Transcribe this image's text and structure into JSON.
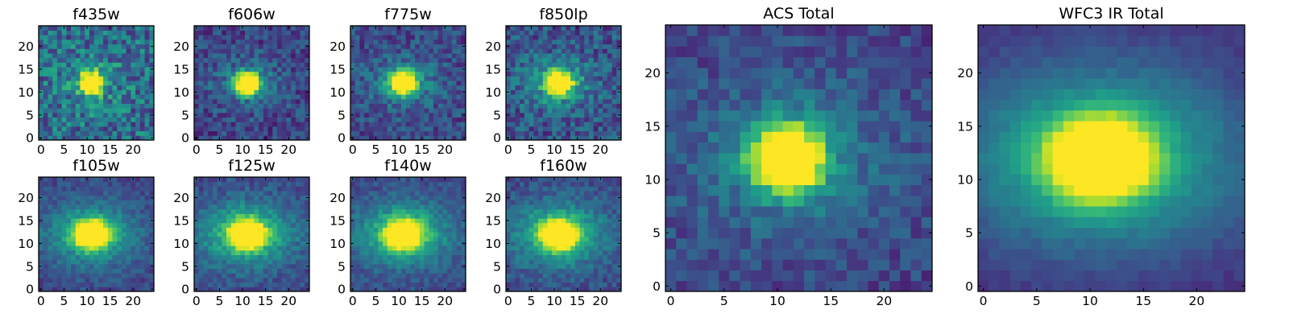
{
  "colormap": "viridis",
  "chart_data": [
    {
      "type": "heatmap",
      "title": "f435w",
      "image_size": 25,
      "xticks": [
        0,
        5,
        10,
        15,
        20
      ],
      "yticks": [
        0,
        5,
        10,
        15,
        20
      ],
      "source_center": [
        11,
        12
      ],
      "source_radius": [
        1.6,
        1.6
      ],
      "halo_level": 0.15,
      "noise_level": 0.45,
      "background_level": 0.35
    },
    {
      "type": "heatmap",
      "title": "f606w",
      "image_size": 25,
      "xticks": [
        0,
        5,
        10,
        15,
        20
      ],
      "yticks": [
        0,
        5,
        10,
        15,
        20
      ],
      "source_center": [
        11,
        12
      ],
      "source_radius": [
        1.8,
        1.6
      ],
      "halo_level": 0.2,
      "noise_level": 0.3,
      "background_level": 0.2
    },
    {
      "type": "heatmap",
      "title": "f775w",
      "image_size": 25,
      "xticks": [
        0,
        5,
        10,
        15,
        20
      ],
      "yticks": [
        0,
        5,
        10,
        15,
        20
      ],
      "source_center": [
        11,
        12
      ],
      "source_radius": [
        1.8,
        1.6
      ],
      "halo_level": 0.25,
      "noise_level": 0.3,
      "background_level": 0.22
    },
    {
      "type": "heatmap",
      "title": "f850lp",
      "image_size": 25,
      "xticks": [
        0,
        5,
        10,
        15,
        20
      ],
      "yticks": [
        0,
        5,
        10,
        15,
        20
      ],
      "source_center": [
        11,
        12
      ],
      "source_radius": [
        1.8,
        1.6
      ],
      "halo_level": 0.3,
      "noise_level": 0.35,
      "background_level": 0.25
    },
    {
      "type": "heatmap",
      "title": "f105w",
      "image_size": 25,
      "xticks": [
        0,
        5,
        10,
        15,
        20
      ],
      "yticks": [
        0,
        5,
        10,
        15,
        20
      ],
      "source_center": [
        11,
        12
      ],
      "source_radius": [
        2.3,
        1.9
      ],
      "halo_level": 0.45,
      "noise_level": 0.18,
      "background_level": 0.2
    },
    {
      "type": "heatmap",
      "title": "f125w",
      "image_size": 25,
      "xticks": [
        0,
        5,
        10,
        15,
        20
      ],
      "yticks": [
        0,
        5,
        10,
        15,
        20
      ],
      "source_center": [
        11,
        12
      ],
      "source_radius": [
        2.3,
        1.9
      ],
      "halo_level": 0.5,
      "noise_level": 0.2,
      "background_level": 0.22
    },
    {
      "type": "heatmap",
      "title": "f140w",
      "image_size": 25,
      "xticks": [
        0,
        5,
        10,
        15,
        20
      ],
      "yticks": [
        0,
        5,
        10,
        15,
        20
      ],
      "source_center": [
        11,
        12
      ],
      "source_radius": [
        2.3,
        1.9
      ],
      "halo_level": 0.5,
      "noise_level": 0.18,
      "background_level": 0.22
    },
    {
      "type": "heatmap",
      "title": "f160w",
      "image_size": 25,
      "xticks": [
        0,
        5,
        10,
        15,
        20
      ],
      "yticks": [
        0,
        5,
        10,
        15,
        20
      ],
      "source_center": [
        11,
        12
      ],
      "source_radius": [
        2.3,
        1.9
      ],
      "halo_level": 0.5,
      "noise_level": 0.2,
      "background_level": 0.22
    },
    {
      "type": "heatmap",
      "title": "ACS Total",
      "image_size": 25,
      "xticks": [
        0,
        5,
        10,
        15,
        20
      ],
      "yticks": [
        0,
        5,
        10,
        15,
        20
      ],
      "source_center": [
        11,
        12
      ],
      "source_radius": [
        2.2,
        2.0
      ],
      "halo_level": 0.25,
      "noise_level": 0.22,
      "background_level": 0.2
    },
    {
      "type": "heatmap",
      "title": "WFC3 IR Total",
      "image_size": 25,
      "xticks": [
        0,
        5,
        10,
        15,
        20
      ],
      "yticks": [
        0,
        5,
        10,
        15,
        20
      ],
      "source_center": [
        11,
        12
      ],
      "source_radius": [
        3.0,
        2.4
      ],
      "halo_level": 0.55,
      "noise_level": 0.07,
      "background_level": 0.12
    }
  ]
}
